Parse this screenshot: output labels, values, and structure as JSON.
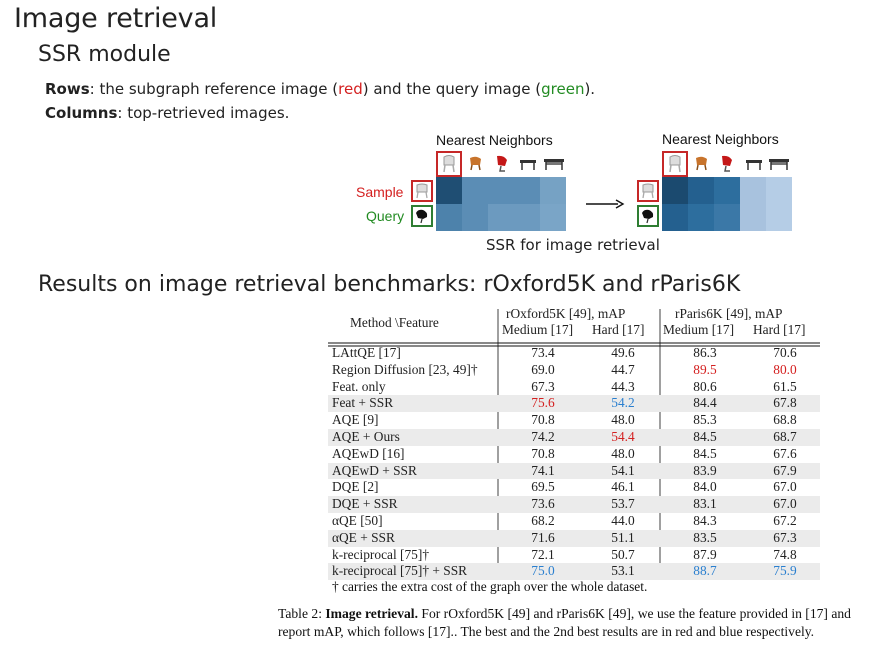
{
  "headings": {
    "title": "Image retrieval",
    "section": "SSR module",
    "results": "Results on image retrieval benchmarks: rOxford5K and rParis6K"
  },
  "description": {
    "rows_label": "Rows",
    "rows_text_1": ": the subgraph reference image (",
    "rows_red": "red",
    "rows_text_2": ") and the query image (",
    "rows_green": "green",
    "rows_text_3": ").",
    "cols_label": "Columns",
    "cols_text": ": top-retrieved images."
  },
  "figure": {
    "nn_label_left": "Nearest Neighbors",
    "nn_label_right": "Nearest Neighbors",
    "sample_label": "Sample",
    "query_label": "Query",
    "caption": "SSR for image retrieval",
    "colors": {
      "left_sample": [
        "#1f4e73",
        "#5b8db5",
        "#5b8db5",
        "#5b8db5",
        "#76a2c4"
      ],
      "left_query": [
        "#4d82ab",
        "#5b8db5",
        "#6c9abf",
        "#6c9abf",
        "#7aa5c7"
      ],
      "right_sample": [
        "#1b4a6f",
        "#24608f",
        "#2d6e9e",
        "#a8c2de",
        "#b5cde6"
      ],
      "right_query": [
        "#24608f",
        "#2d6e9e",
        "#3b78a7",
        "#a8c2de",
        "#b5cde6"
      ]
    }
  },
  "table": {
    "header": {
      "method": "Method \\Feature",
      "oxford": "rOxford5K [49], mAP",
      "paris": "rParis6K [49], mAP",
      "medium": "Medium [17]",
      "hard": "Hard [17]"
    },
    "rows": [
      {
        "method": "LAttQE [17]",
        "om": "73.4",
        "oh": "49.6",
        "pm": "86.3",
        "ph": "70.6"
      },
      {
        "method": "Region Diffusion [23, 49]†",
        "om": "69.0",
        "oh": "44.7",
        "pm": "89.5",
        "ph": "80.0"
      },
      {
        "method": "Feat. only",
        "om": "67.3",
        "oh": "44.3",
        "pm": "80.6",
        "ph": "61.5"
      },
      {
        "method": "Feat + SSR",
        "om": "75.6",
        "oh": "54.2",
        "pm": "84.4",
        "ph": "67.8"
      },
      {
        "method": "AQE [9]",
        "om": "70.8",
        "oh": "48.0",
        "pm": "85.3",
        "ph": "68.8"
      },
      {
        "method": "AQE + Ours",
        "om": "74.2",
        "oh": "54.4",
        "pm": "84.5",
        "ph": "68.7"
      },
      {
        "method": "AQEwD [16]",
        "om": "70.8",
        "oh": "48.0",
        "pm": "84.5",
        "ph": "67.6"
      },
      {
        "method": "AQEwD + SSR",
        "om": "74.1",
        "oh": "54.1",
        "pm": "83.9",
        "ph": "67.9"
      },
      {
        "method": "DQE [2]",
        "om": "69.5",
        "oh": "46.1",
        "pm": "84.0",
        "ph": "67.0"
      },
      {
        "method": "DQE + SSR",
        "om": "73.6",
        "oh": "53.7",
        "pm": "83.1",
        "ph": "67.0"
      },
      {
        "method": "αQE [50]",
        "om": "68.2",
        "oh": "44.0",
        "pm": "84.3",
        "ph": "67.2"
      },
      {
        "method": "αQE + SSR",
        "om": "71.6",
        "oh": "51.1",
        "pm": "83.5",
        "ph": "67.3"
      },
      {
        "method": "k-reciprocal [75]†",
        "om": "72.1",
        "oh": "50.7",
        "pm": "87.9",
        "ph": "74.8"
      },
      {
        "method": "k-reciprocal [75]† + SSR",
        "om": "75.0",
        "oh": "53.1",
        "pm": "88.7",
        "ph": "75.9"
      }
    ],
    "footnote": "† carries the extra cost of the graph over the whole dataset.",
    "caption_label": "Table 2: ",
    "caption_bold": "Image retrieval.",
    "caption_text": " For rOxford5K [49] and rParis6K [49], we use the feature provided in [17] and report mAP, which follows [17].. The best and the 2nd best results are in red and blue respectively."
  }
}
